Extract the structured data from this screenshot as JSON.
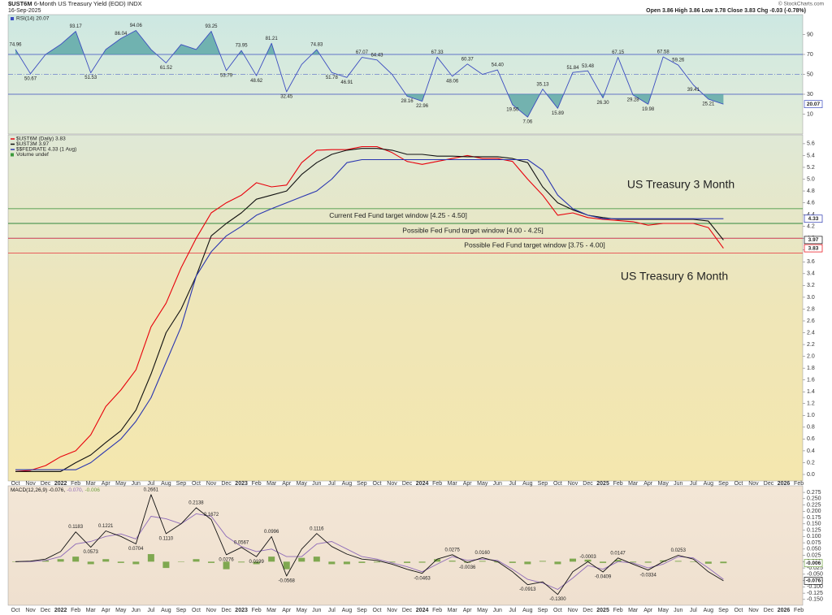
{
  "header": {
    "symbol": "$UST6M",
    "title": "6-Month US Treasury Yield (EOD)",
    "exchange": "INDX",
    "date": "16-Sep-2025",
    "copyright": "© StockCharts.com",
    "quote": "Open 3.86 High 3.86 Low 3.78 Close 3.83 Chg -0.03 (-0.78%)"
  },
  "chart_data": [
    {
      "type": "line",
      "legend": "RSI(14) 20.07",
      "ylim": [
        -10,
        110
      ],
      "yticks": [
        10,
        30,
        50,
        70,
        90
      ],
      "levels": [
        30,
        50,
        70
      ],
      "level_color": "#3b4cc0",
      "fill_color": "#4f9fa0",
      "series": [
        {
          "name": "RSI(14)",
          "color": "#3b4cc0",
          "values": [
            74.96,
            50.67,
            70,
            80,
            93.17,
            51.53,
            75,
            86.04,
            94.06,
            75,
            61.52,
            80,
            75,
            93.25,
            53.79,
            73.95,
            48.62,
            81.21,
            32.45,
            60,
            74.83,
            51.78,
            46.91,
            67.07,
            64.43,
            50,
            28.16,
            22.96,
            67.33,
            48.06,
            60.37,
            50,
            54.4,
            19.5,
            7.06,
            35.13,
            15.89,
            51.84,
            53.48,
            26.3,
            67.15,
            29.28,
            19.98,
            67.58,
            59.26,
            39.41,
            25.21,
            20.07,
            null,
            null,
            null,
            null,
            null
          ],
          "value_labels": [
            "74.96",
            "50.67",
            null,
            null,
            "93.17",
            "51.53",
            null,
            "86.04",
            "94.06",
            null,
            "61.52",
            null,
            null,
            "93.25",
            "53.79",
            "73.95",
            "48.62",
            "81.21",
            "32.45",
            null,
            "74.83",
            "51.78",
            "46.91",
            "67.07",
            "64.43",
            null,
            "28.16",
            "22.96",
            "67.33",
            "48.06",
            "60.37",
            null,
            "54.40",
            "19.50",
            "7.06",
            "35.13",
            "15.89",
            "51.84",
            "53.48",
            "26.30",
            "67.15",
            "29.28",
            "19.98",
            "67.58",
            "59.26",
            "39.41",
            "25.21",
            null,
            null,
            null,
            null,
            null,
            null
          ]
        }
      ],
      "badges": [
        {
          "value": 20.07,
          "label": "20.07",
          "color": "#3b4cc0"
        }
      ]
    },
    {
      "type": "line",
      "categories": [
        "Oct",
        "Nov",
        "Dec",
        "2022",
        "Feb",
        "Mar",
        "Apr",
        "May",
        "Jun",
        "Jul",
        "Aug",
        "Sep",
        "Oct",
        "Nov",
        "Dec",
        "2023",
        "Feb",
        "Mar",
        "Apr",
        "May",
        "Jun",
        "Jul",
        "Aug",
        "Sep",
        "Oct",
        "Nov",
        "Dec",
        "2024",
        "Feb",
        "Mar",
        "Apr",
        "May",
        "Jun",
        "Jul",
        "Aug",
        "Sep",
        "Oct",
        "Nov",
        "Dec",
        "2025",
        "Feb",
        "Mar",
        "Apr",
        "May",
        "Jun",
        "Jul",
        "Aug",
        "Sep",
        "Oct",
        "Nov",
        "Dec",
        "2026",
        "Feb"
      ],
      "ylim": [
        -0.11,
        5.75
      ],
      "yticks": [
        {
          "value": 0,
          "label": "0.0"
        },
        0.2,
        0.4,
        0.6,
        0.8,
        {
          "value": 1,
          "label": "1.0"
        },
        1.2,
        1.4,
        1.6,
        1.8,
        {
          "value": 2,
          "label": "2.0"
        },
        2.2,
        2.4,
        2.6,
        2.8,
        {
          "value": 3,
          "label": "3.0"
        },
        3.2,
        3.4,
        3.6,
        3.8,
        {
          "value": 4,
          "label": "4.0"
        },
        4.2,
        4.4,
        4.6,
        4.8,
        {
          "value": 5,
          "label": "5.0"
        },
        5.2,
        5.4,
        5.6
      ],
      "series": [
        {
          "name": "$UST6M (Daily) 3.83",
          "color": "#e8000b",
          "values": [
            0.05,
            0.07,
            0.15,
            0.3,
            0.4,
            0.67,
            1.15,
            1.43,
            1.77,
            2.5,
            2.9,
            3.5,
            4.0,
            4.43,
            4.6,
            4.73,
            4.94,
            4.87,
            4.9,
            5.28,
            5.49,
            5.5,
            5.5,
            5.55,
            5.55,
            5.45,
            5.3,
            5.25,
            5.3,
            5.35,
            5.4,
            5.35,
            5.35,
            5.3,
            5.0,
            4.73,
            4.39,
            4.43,
            4.35,
            4.32,
            4.3,
            4.28,
            4.22,
            4.25,
            4.25,
            4.25,
            4.18,
            3.83,
            null,
            null,
            null,
            null,
            null
          ]
        },
        {
          "name": "$UST3M 3.97",
          "color": "#111111",
          "values": [
            0.05,
            0.05,
            0.05,
            0.05,
            0.2,
            0.33,
            0.54,
            0.74,
            1.09,
            1.7,
            2.4,
            2.8,
            3.36,
            4.04,
            4.25,
            4.43,
            4.66,
            4.73,
            4.8,
            5.08,
            5.28,
            5.42,
            5.49,
            5.52,
            5.52,
            5.49,
            5.42,
            5.42,
            5.39,
            5.39,
            5.38,
            5.38,
            5.38,
            5.35,
            5.28,
            4.87,
            4.6,
            4.48,
            4.39,
            4.35,
            4.32,
            4.32,
            4.32,
            4.32,
            4.32,
            4.32,
            4.29,
            3.97,
            null,
            null,
            null,
            null,
            null
          ]
        },
        {
          "name": "$$FEDRATE 4.33 (1 Aug)",
          "color": "#2a36b0",
          "values": [
            0.08,
            0.08,
            0.08,
            0.08,
            0.08,
            0.2,
            0.4,
            0.6,
            0.9,
            1.3,
            1.9,
            2.5,
            3.36,
            3.77,
            4.04,
            4.2,
            4.39,
            4.5,
            4.6,
            4.7,
            4.8,
            5.0,
            5.28,
            5.33,
            5.33,
            5.33,
            5.33,
            5.33,
            5.33,
            5.33,
            5.33,
            5.33,
            5.33,
            5.33,
            5.33,
            5.15,
            4.73,
            4.5,
            4.39,
            4.33,
            4.33,
            4.33,
            4.33,
            4.33,
            4.33,
            4.33,
            4.33,
            4.33,
            null,
            null,
            null,
            null,
            null
          ]
        }
      ],
      "volume_label": "Volume undef",
      "volume_color": "#3c9a3c",
      "windows": [
        {
          "label": "Current Fed Fund target window [4.25 - 4.50]",
          "low": 4.25,
          "high": 4.5,
          "color": "#2e8b2e"
        },
        {
          "label": "Possible Fed Fund target window [4.00 - 4.25]",
          "low": 4.0,
          "high": 4.25,
          "color": "#2a36b0"
        },
        {
          "label": "Possible Fed Fund target window [3.75 - 4.00]",
          "low": 3.75,
          "high": 4.0,
          "color": "#e8303a"
        }
      ],
      "annotations": [
        {
          "text": "US Treasury 3 Month",
          "color": "#111111"
        },
        {
          "text": "US Treasury 6 Month",
          "color": "#e8000b"
        }
      ],
      "badges": [
        {
          "value": 4.33,
          "label": "4.33",
          "color": "#2a36b0"
        },
        {
          "value": 3.97,
          "label": "3.97",
          "color": "#111111"
        },
        {
          "value": 3.83,
          "label": "3.83",
          "color": "#e8000b"
        }
      ]
    },
    {
      "type": "line",
      "categories": [
        "Oct",
        "Nov",
        "Dec",
        "2022",
        "Feb",
        "Mar",
        "Apr",
        "May",
        "Jun",
        "Jul",
        "Aug",
        "Sep",
        "Oct",
        "Nov",
        "Dec",
        "2023",
        "Feb",
        "Mar",
        "Apr",
        "May",
        "Jun",
        "Jul",
        "Aug",
        "Sep",
        "Oct",
        "Nov",
        "Dec",
        "2024",
        "Feb",
        "Mar",
        "Apr",
        "May",
        "Jun",
        "Jul",
        "Aug",
        "Sep",
        "Oct",
        "Nov",
        "Dec",
        "2025",
        "Feb",
        "Mar",
        "Apr",
        "May",
        "Jun",
        "Jul",
        "Aug",
        "Sep",
        "Oct",
        "Nov",
        "Dec",
        "2026",
        "Feb"
      ],
      "legend": [
        "MACD(12,26,9) -0.076,",
        "-0.070,",
        "-0.006"
      ],
      "ylim": [
        -0.173,
        0.301
      ],
      "yticks": [
        0.275,
        {
          "value": 0.25,
          "label": "0.250"
        },
        0.225,
        {
          "value": 0.2,
          "label": "0.200"
        },
        0.175,
        {
          "value": 0.15,
          "label": "0.150"
        },
        0.125,
        {
          "value": 0.1,
          "label": "0.100"
        },
        0.075,
        {
          "value": 0.05,
          "label": "0.050"
        },
        0.025,
        {
          "value": 0,
          "label": "0.000"
        },
        -0.025,
        {
          "value": -0.05,
          "label": "-0.050"
        },
        -0.075,
        {
          "value": -0.1,
          "label": "-0.100"
        },
        -0.125,
        {
          "value": -0.15,
          "label": "-0.150"
        }
      ],
      "series": [
        {
          "name": "Histogram",
          "type": "bar",
          "color": "#6b9e3a",
          "values": [
            0,
            0.002,
            0.005,
            0.01,
            0.02,
            -0.01,
            0.01,
            -0.005,
            -0.01,
            0.03,
            -0.025,
            0,
            0.01,
            -0.005,
            -0.03,
            -0.003,
            -0.01,
            0.02,
            -0.03,
            0.015,
            0.02,
            -0.01,
            -0.01,
            -0.005,
            -0.003,
            -0.003,
            -0.005,
            -0.004,
            0.01,
            0.004,
            -0.004,
            0.003,
            -0.003,
            -0.005,
            -0.01,
            0.003,
            -0.01,
            0.012,
            0.008,
            -0.005,
            0.007,
            -0.003,
            -0.004,
            0.005,
            0.003,
            -0.002,
            -0.008,
            -0.006,
            null,
            null,
            null,
            null,
            null
          ]
        },
        {
          "name": "Signal",
          "color": "#8e6bb8",
          "values": [
            0,
            0,
            0.005,
            0.02,
            0.07,
            0.08,
            0.1,
            0.11,
            0.09,
            0.18,
            0.17,
            0.15,
            0.19,
            0.18,
            0.1,
            0.06,
            0.04,
            0.05,
            0.02,
            0.02,
            0.07,
            0.08,
            0.05,
            0.02,
            0.01,
            -0.005,
            -0.02,
            -0.04,
            -0.01,
            0.02,
            0.005,
            0.01,
            0.005,
            -0.03,
            -0.07,
            -0.085,
            -0.11,
            -0.065,
            -0.015,
            -0.03,
            0,
            -0.005,
            -0.025,
            -0.01,
            0.02,
            0.015,
            -0.025,
            -0.07,
            null,
            null,
            null,
            null,
            null
          ]
        },
        {
          "name": "MACD",
          "color": "#111111",
          "values": [
            0,
            0.002,
            0.01,
            0.04,
            0.1183,
            0.0573,
            0.1221,
            0.1,
            0.0704,
            0.2661,
            0.111,
            0.15,
            0.2138,
            0.1672,
            0.0276,
            0.0567,
            0.0199,
            0.0996,
            -0.0568,
            0.05,
            0.1116,
            0.06,
            0.03,
            0.01,
            0.005,
            -0.01,
            -0.03,
            -0.0463,
            0.01,
            0.0275,
            -0.0036,
            0.016,
            0,
            -0.04,
            -0.0913,
            -0.08,
            -0.13,
            -0.04,
            -0.0003,
            -0.0409,
            0.0147,
            -0.01,
            -0.0334,
            0,
            0.0253,
            0.01,
            -0.04,
            -0.076,
            null,
            null,
            null,
            null,
            null
          ],
          "value_labels": [
            null,
            null,
            null,
            null,
            "0.1183",
            "0.0573",
            "0.1221",
            null,
            "0.0704",
            "0.2661",
            "0.1110",
            null,
            "0.2138",
            "0.1672",
            "0.0276",
            "0.0567",
            "0.0199",
            "0.0996",
            "-0.0568",
            null,
            "0.1116",
            null,
            null,
            null,
            null,
            null,
            null,
            "-0.0463",
            null,
            "0.0275",
            "-0.0036",
            "0.0160",
            null,
            null,
            "-0.0913",
            null,
            "-0.1300",
            null,
            "-0.0003",
            "-0.0409",
            "0.0147",
            null,
            "-0.0334",
            null,
            "0.0253",
            null,
            null,
            null,
            null,
            null,
            null,
            null,
            null
          ]
        }
      ],
      "badges": [
        {
          "value": -0.006,
          "label": "-0.006",
          "color": "#6b9e3a"
        },
        {
          "value": -0.076,
          "label": "-0.076",
          "color": "#111111"
        }
      ]
    }
  ]
}
